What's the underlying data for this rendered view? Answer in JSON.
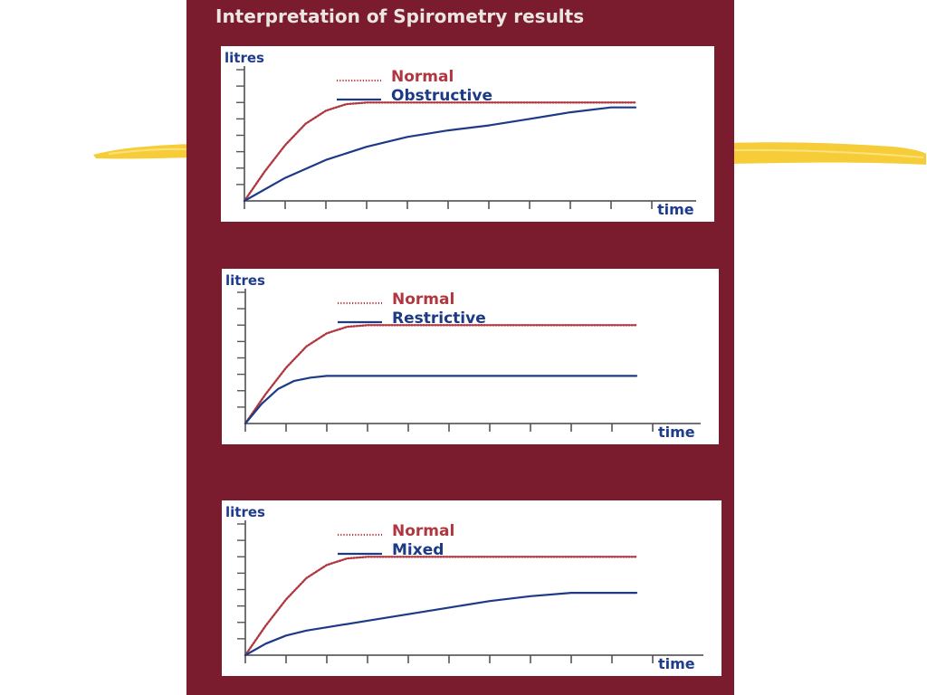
{
  "title": "Interpretation of Spirometry results",
  "colors": {
    "panel_background": "#7b1b2e",
    "chart_background": "#ffffff",
    "normal_series": "#b0373f",
    "comparison_series": "#1c3a86",
    "axis_label": "#1f3c8c",
    "decorative_stroke": "#f6cd38"
  },
  "decorations": {
    "left_stroke_icon": "yellow-brush-stroke-icon",
    "right_stroke_icon": "yellow-brush-stroke-icon"
  },
  "chart_data": [
    {
      "type": "line",
      "ylabel": "litres",
      "xlabel": "time",
      "x_ticks": 10,
      "y_ticks": 8,
      "grid": false,
      "legend_position": "top-left",
      "xlim": [
        0,
        10
      ],
      "ylim": [
        0,
        8
      ],
      "series": [
        {
          "name": "Normal",
          "style": "dotted",
          "color": "#b0373f",
          "x": [
            0,
            0.5,
            1,
            1.5,
            2,
            2.5,
            3,
            4,
            5,
            6,
            7,
            8,
            9,
            9.6
          ],
          "y": [
            0,
            1.8,
            3.4,
            4.7,
            5.5,
            5.9,
            6.0,
            6.0,
            6.0,
            6.0,
            6.0,
            6.0,
            6.0,
            6.0
          ]
        },
        {
          "name": "Obstructive",
          "style": "solid",
          "color": "#1c3a86",
          "x": [
            0,
            1,
            2,
            3,
            4,
            5,
            6,
            7,
            8,
            9,
            9.6
          ],
          "y": [
            0,
            1.4,
            2.5,
            3.3,
            3.9,
            4.3,
            4.6,
            5.0,
            5.4,
            5.7,
            5.7
          ]
        }
      ]
    },
    {
      "type": "line",
      "ylabel": "litres",
      "xlabel": "time",
      "x_ticks": 10,
      "y_ticks": 8,
      "grid": false,
      "legend_position": "top-left",
      "xlim": [
        0,
        10
      ],
      "ylim": [
        0,
        8
      ],
      "series": [
        {
          "name": "Normal",
          "style": "dotted",
          "color": "#b0373f",
          "x": [
            0,
            0.5,
            1,
            1.5,
            2,
            2.5,
            3,
            4,
            5,
            6,
            7,
            8,
            9,
            9.6
          ],
          "y": [
            0,
            1.8,
            3.4,
            4.7,
            5.5,
            5.9,
            6.0,
            6.0,
            6.0,
            6.0,
            6.0,
            6.0,
            6.0,
            6.0
          ]
        },
        {
          "name": "Restrictive",
          "style": "solid",
          "color": "#1c3a86",
          "x": [
            0,
            0.4,
            0.8,
            1.2,
            1.6,
            2,
            3,
            5,
            7,
            9,
            9.6
          ],
          "y": [
            0,
            1.2,
            2.1,
            2.6,
            2.8,
            2.9,
            2.9,
            2.9,
            2.9,
            2.9,
            2.9
          ]
        }
      ]
    },
    {
      "type": "line",
      "ylabel": "litres",
      "xlabel": "time",
      "x_ticks": 10,
      "y_ticks": 8,
      "grid": false,
      "legend_position": "top-left",
      "xlim": [
        0,
        10
      ],
      "ylim": [
        0,
        8
      ],
      "series": [
        {
          "name": "Normal",
          "style": "dotted",
          "color": "#b0373f",
          "x": [
            0,
            0.5,
            1,
            1.5,
            2,
            2.5,
            3,
            4,
            5,
            6,
            7,
            8,
            9,
            9.6
          ],
          "y": [
            0,
            1.8,
            3.4,
            4.7,
            5.5,
            5.9,
            6.0,
            6.0,
            6.0,
            6.0,
            6.0,
            6.0,
            6.0,
            6.0
          ]
        },
        {
          "name": "Mixed",
          "style": "solid",
          "color": "#1c3a86",
          "x": [
            0,
            0.5,
            1,
            1.5,
            2,
            3,
            4,
            5,
            6,
            7,
            8,
            9,
            9.6
          ],
          "y": [
            0,
            0.7,
            1.2,
            1.5,
            1.7,
            2.1,
            2.5,
            2.9,
            3.3,
            3.6,
            3.8,
            3.8,
            3.8
          ]
        }
      ]
    }
  ]
}
